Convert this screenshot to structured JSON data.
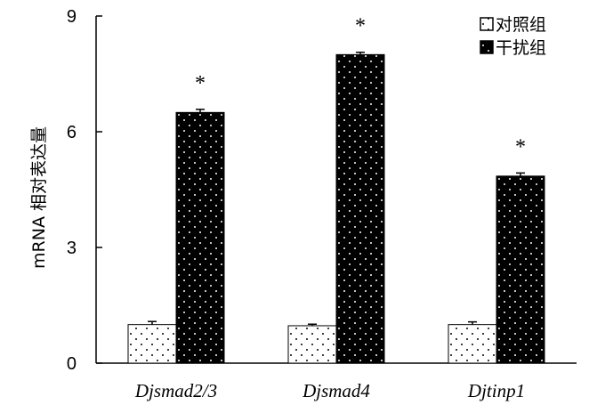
{
  "chart_data": {
    "type": "bar",
    "title": "",
    "xlabel": "",
    "ylabel": "mRNA 相对表达量",
    "ylim": [
      0,
      9
    ],
    "yticks": [
      "0",
      "3",
      "6",
      "9"
    ],
    "grid": false,
    "legend_position": "top-right",
    "categories": [
      "Djsmad2/3",
      "Djsmad4",
      "Djtinp1"
    ],
    "series": [
      {
        "name": "对照组",
        "values": [
          1.0,
          0.97,
          1.0
        ],
        "errors": [
          0.08,
          0.04,
          0.07
        ],
        "pattern": "light-dotted"
      },
      {
        "name": "干扰组",
        "values": [
          6.5,
          8.0,
          4.85
        ],
        "errors": [
          0.08,
          0.06,
          0.08
        ],
        "pattern": "dark-dotted"
      }
    ],
    "annotations": [
      "*",
      "*",
      "*"
    ]
  }
}
